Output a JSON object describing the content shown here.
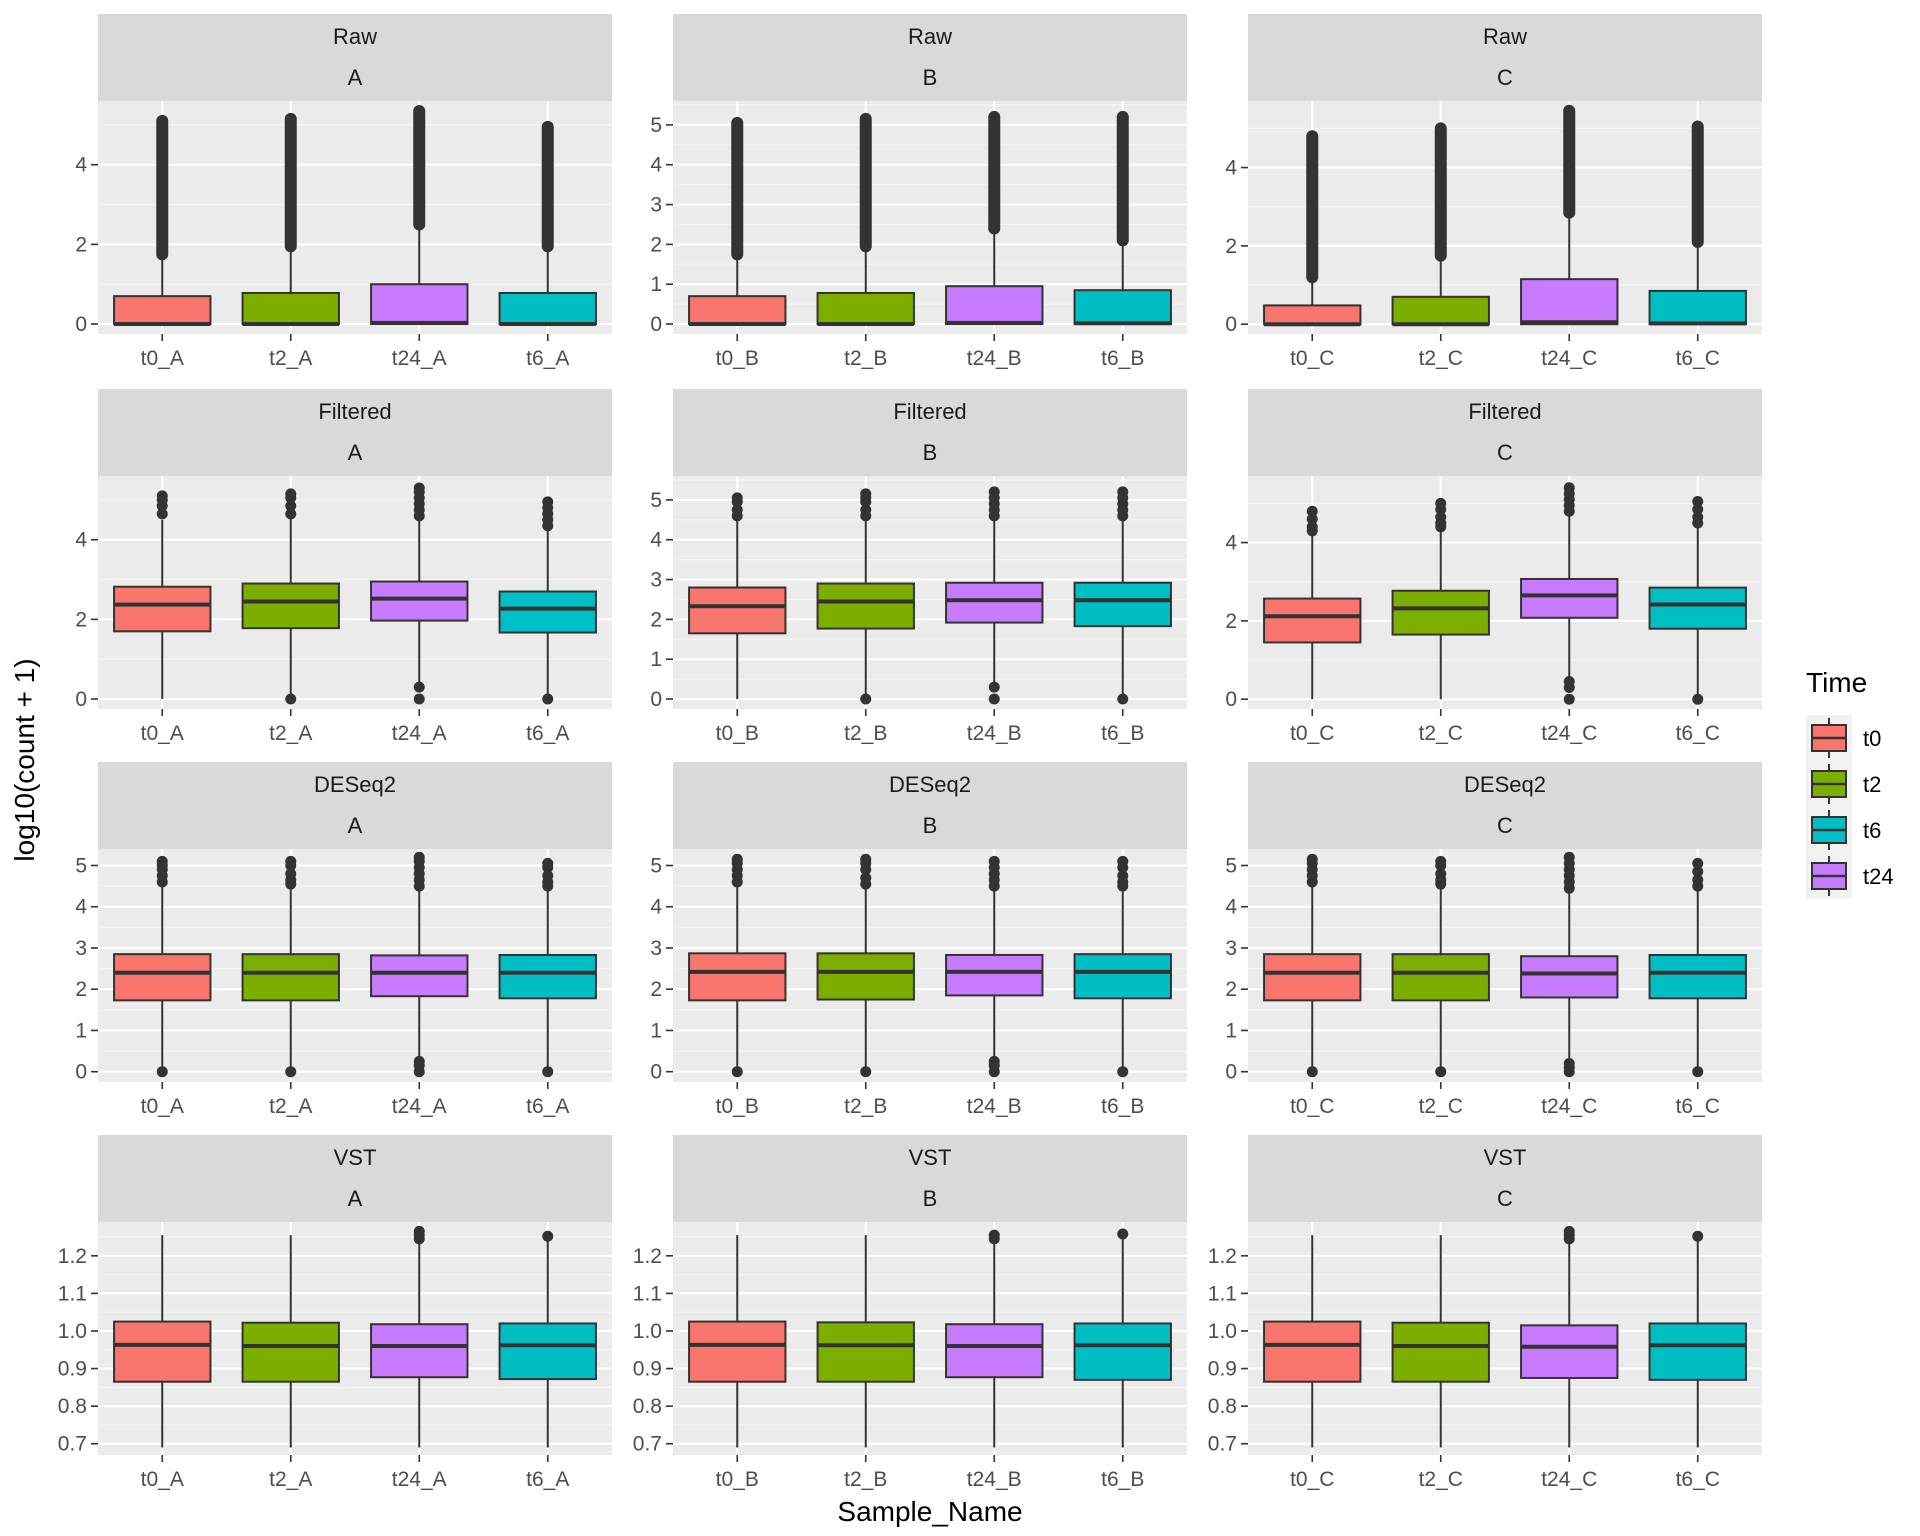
{
  "chart_data": {
    "type": "boxplot",
    "xlabel": "Sample_Name",
    "ylabel": "log10(count + 1)",
    "legend": {
      "title": "Time",
      "placement": "right",
      "entries": [
        {
          "label": "t0",
          "color": "#F8766D"
        },
        {
          "label": "t2",
          "color": "#7CAE00"
        },
        {
          "label": "t6",
          "color": "#00BFC4"
        },
        {
          "label": "t24",
          "color": "#C77CFF"
        }
      ]
    },
    "time_colors": {
      "t0": "#F8766D",
      "t2": "#7CAE00",
      "t6": "#00BFC4",
      "t24": "#C77CFF"
    },
    "rows": [
      {
        "label": "Raw",
        "ylim": [
          -0.25,
          5.6
        ],
        "ticks": [
          0,
          2,
          4
        ]
      },
      {
        "label": "Raw",
        "ylim": [
          -0.25,
          5.6
        ],
        "ticks": [
          0,
          1,
          2,
          3,
          4,
          5
        ]
      },
      {
        "label": "Raw",
        "ylim": [
          -0.25,
          5.7
        ],
        "ticks": [
          0,
          2,
          4
        ]
      },
      {
        "label": "Filtered",
        "ylim": [
          -0.25,
          5.6
        ],
        "ticks": [
          0,
          2,
          4
        ]
      },
      {
        "label": "Filtered",
        "ylim": [
          -0.25,
          5.6
        ],
        "ticks": [
          0,
          1,
          2,
          3,
          4,
          5
        ]
      },
      {
        "label": "Filtered",
        "ylim": [
          -0.25,
          5.7
        ],
        "ticks": [
          0,
          2,
          4
        ]
      },
      {
        "label": "DESeq2",
        "ylim": [
          -0.25,
          5.4
        ],
        "ticks": [
          0,
          1,
          2,
          3,
          4,
          5
        ]
      },
      {
        "label": "DESeq2",
        "ylim": [
          -0.25,
          5.4
        ],
        "ticks": [
          0,
          1,
          2,
          3,
          4,
          5
        ]
      },
      {
        "label": "DESeq2",
        "ylim": [
          -0.25,
          5.4
        ],
        "ticks": [
          0,
          1,
          2,
          3,
          4,
          5
        ]
      },
      {
        "label": "VST",
        "ylim": [
          0.67,
          1.29
        ],
        "ticks": [
          0.7,
          0.8,
          0.9,
          1.0,
          1.1,
          1.2
        ]
      },
      {
        "label": "VST",
        "ylim": [
          0.67,
          1.29
        ],
        "ticks": [
          0.7,
          0.8,
          0.9,
          1.0,
          1.1,
          1.2
        ]
      },
      {
        "label": "VST",
        "ylim": [
          0.67,
          1.29
        ],
        "ticks": [
          0.7,
          0.8,
          0.9,
          1.0,
          1.1,
          1.2
        ]
      }
    ],
    "panels": [
      {
        "row": "Raw",
        "replicate": "A",
        "boxes": [
          {
            "sample": "t0_A",
            "time": "t0",
            "min": 0,
            "q1": 0,
            "median": 0,
            "q3": 0.7,
            "max": 1.75,
            "outlier_range": [
              1.75,
              5.1
            ]
          },
          {
            "sample": "t2_A",
            "time": "t2",
            "min": 0,
            "q1": 0,
            "median": 0,
            "q3": 0.78,
            "max": 1.95,
            "outlier_range": [
              1.95,
              5.15
            ]
          },
          {
            "sample": "t24_A",
            "time": "t24",
            "min": 0,
            "q1": 0,
            "median": 0.03,
            "q3": 1.0,
            "max": 2.5,
            "outlier_range": [
              2.5,
              5.35
            ]
          },
          {
            "sample": "t6_A",
            "time": "t6",
            "min": 0,
            "q1": 0,
            "median": 0,
            "q3": 0.78,
            "max": 1.95,
            "outlier_range": [
              1.95,
              4.95
            ]
          }
        ]
      },
      {
        "row": "Raw",
        "replicate": "B",
        "boxes": [
          {
            "sample": "t0_B",
            "time": "t0",
            "min": 0,
            "q1": 0,
            "median": 0,
            "q3": 0.7,
            "max": 1.75,
            "outlier_range": [
              1.75,
              5.05
            ]
          },
          {
            "sample": "t2_B",
            "time": "t2",
            "min": 0,
            "q1": 0,
            "median": 0,
            "q3": 0.78,
            "max": 1.95,
            "outlier_range": [
              1.95,
              5.15
            ]
          },
          {
            "sample": "t24_B",
            "time": "t24",
            "min": 0,
            "q1": 0,
            "median": 0.03,
            "q3": 0.95,
            "max": 2.4,
            "outlier_range": [
              2.4,
              5.2
            ]
          },
          {
            "sample": "t6_B",
            "time": "t6",
            "min": 0,
            "q1": 0,
            "median": 0.02,
            "q3": 0.85,
            "max": 2.1,
            "outlier_range": [
              2.1,
              5.2
            ]
          }
        ]
      },
      {
        "row": "Raw",
        "replicate": "C",
        "boxes": [
          {
            "sample": "t0_C",
            "time": "t0",
            "min": 0,
            "q1": 0,
            "median": 0,
            "q3": 0.48,
            "max": 1.2,
            "outlier_range": [
              1.2,
              4.8
            ]
          },
          {
            "sample": "t2_C",
            "time": "t2",
            "min": 0,
            "q1": 0,
            "median": 0,
            "q3": 0.7,
            "max": 1.75,
            "outlier_range": [
              1.75,
              5.0
            ]
          },
          {
            "sample": "t24_C",
            "time": "t24",
            "min": 0,
            "q1": 0,
            "median": 0.05,
            "q3": 1.15,
            "max": 2.85,
            "outlier_range": [
              2.85,
              5.45
            ]
          },
          {
            "sample": "t6_C",
            "time": "t6",
            "min": 0,
            "q1": 0,
            "median": 0.02,
            "q3": 0.85,
            "max": 2.1,
            "outlier_range": [
              2.1,
              5.05
            ]
          }
        ]
      },
      {
        "row": "Filtered",
        "replicate": "A",
        "boxes": [
          {
            "sample": "t0_A",
            "time": "t0",
            "min": 0,
            "q1": 1.7,
            "median": 2.37,
            "q3": 2.82,
            "max": 4.5,
            "outliers": [
              4.65,
              4.85,
              5.0,
              5.1
            ]
          },
          {
            "sample": "t2_A",
            "time": "t2",
            "min": 0.05,
            "q1": 1.78,
            "median": 2.45,
            "q3": 2.9,
            "max": 4.55,
            "outliers": [
              0.0,
              4.65,
              4.85,
              5.05,
              5.15
            ]
          },
          {
            "sample": "t24_A",
            "time": "t24",
            "min": 0.3,
            "q1": 1.97,
            "median": 2.52,
            "q3": 2.95,
            "max": 4.6,
            "outliers": [
              0.0,
              0.3,
              4.6,
              4.75,
              4.9,
              5.05,
              5.2,
              5.3
            ]
          },
          {
            "sample": "t6_A",
            "time": "t6",
            "min": 0.05,
            "q1": 1.67,
            "median": 2.27,
            "q3": 2.7,
            "max": 4.3,
            "outliers": [
              0.0,
              4.35,
              4.5,
              4.65,
              4.8,
              4.95
            ]
          }
        ]
      },
      {
        "row": "Filtered",
        "replicate": "B",
        "boxes": [
          {
            "sample": "t0_B",
            "time": "t0",
            "min": 0,
            "q1": 1.65,
            "median": 2.33,
            "q3": 2.8,
            "max": 4.5,
            "outliers": [
              4.6,
              4.75,
              4.95,
              5.05
            ]
          },
          {
            "sample": "t2_B",
            "time": "t2",
            "min": 0.05,
            "q1": 1.77,
            "median": 2.45,
            "q3": 2.9,
            "max": 4.55,
            "outliers": [
              0.0,
              4.6,
              4.75,
              4.95,
              5.05,
              5.15
            ]
          },
          {
            "sample": "t24_B",
            "time": "t24",
            "min": 0.3,
            "q1": 1.92,
            "median": 2.48,
            "q3": 2.92,
            "max": 4.55,
            "outliers": [
              0.0,
              0.3,
              4.6,
              4.75,
              4.9,
              5.05,
              5.2
            ]
          },
          {
            "sample": "t6_B",
            "time": "t6",
            "min": 0.05,
            "q1": 1.83,
            "median": 2.48,
            "q3": 2.92,
            "max": 4.55,
            "outliers": [
              0.0,
              4.6,
              4.75,
              4.9,
              5.05,
              5.2
            ]
          }
        ]
      },
      {
        "row": "Filtered",
        "replicate": "C",
        "boxes": [
          {
            "sample": "t0_C",
            "time": "t0",
            "min": 0,
            "q1": 1.45,
            "median": 2.12,
            "q3": 2.57,
            "max": 4.2,
            "outliers": [
              4.3,
              4.4,
              4.6,
              4.8
            ]
          },
          {
            "sample": "t2_C",
            "time": "t2",
            "min": 0,
            "q1": 1.65,
            "median": 2.32,
            "q3": 2.77,
            "max": 4.35,
            "outliers": [
              4.4,
              4.5,
              4.65,
              4.85,
              5.0
            ]
          },
          {
            "sample": "t24_C",
            "time": "t24",
            "min": 0.5,
            "q1": 2.08,
            "median": 2.65,
            "q3": 3.07,
            "max": 4.75,
            "outliers": [
              0.0,
              0.3,
              0.45,
              4.8,
              4.95,
              5.1,
              5.25,
              5.4
            ]
          },
          {
            "sample": "t6_C",
            "time": "t6",
            "min": 0.05,
            "q1": 1.8,
            "median": 2.42,
            "q3": 2.85,
            "max": 4.45,
            "outliers": [
              0.0,
              4.5,
              4.65,
              4.85,
              5.05
            ]
          }
        ]
      },
      {
        "row": "DESeq2",
        "replicate": "A",
        "boxes": [
          {
            "sample": "t0_A",
            "time": "t0",
            "min": 0.05,
            "q1": 1.73,
            "median": 2.4,
            "q3": 2.85,
            "max": 4.5,
            "outliers": [
              0.0,
              4.6,
              4.75,
              4.9,
              5.0,
              5.1
            ]
          },
          {
            "sample": "t2_A",
            "time": "t2",
            "min": 0.05,
            "q1": 1.73,
            "median": 2.4,
            "q3": 2.85,
            "max": 4.5,
            "outliers": [
              0.0,
              4.55,
              4.65,
              4.8,
              5.0,
              5.1
            ]
          },
          {
            "sample": "t24_A",
            "time": "t24",
            "min": 0.3,
            "q1": 1.83,
            "median": 2.4,
            "q3": 2.82,
            "max": 4.45,
            "outliers": [
              0.0,
              0.15,
              0.25,
              4.5,
              4.65,
              4.8,
              4.95,
              5.1,
              5.2
            ]
          },
          {
            "sample": "t6_A",
            "time": "t6",
            "min": 0.05,
            "q1": 1.78,
            "median": 2.4,
            "q3": 2.83,
            "max": 4.45,
            "outliers": [
              0.0,
              4.5,
              4.6,
              4.75,
              4.95,
              5.05
            ]
          }
        ]
      },
      {
        "row": "DESeq2",
        "replicate": "B",
        "boxes": [
          {
            "sample": "t0_B",
            "time": "t0",
            "min": 0.05,
            "q1": 1.73,
            "median": 2.42,
            "q3": 2.87,
            "max": 4.5,
            "outliers": [
              0.0,
              4.6,
              4.75,
              4.9,
              5.05,
              5.15
            ]
          },
          {
            "sample": "t2_B",
            "time": "t2",
            "min": 0.05,
            "q1": 1.75,
            "median": 2.42,
            "q3": 2.87,
            "max": 4.5,
            "outliers": [
              0.0,
              4.55,
              4.7,
              4.9,
              5.05,
              5.15
            ]
          },
          {
            "sample": "t24_B",
            "time": "t24",
            "min": 0.3,
            "q1": 1.85,
            "median": 2.42,
            "q3": 2.83,
            "max": 4.45,
            "outliers": [
              0.0,
              0.15,
              0.25,
              4.5,
              4.65,
              4.8,
              4.95,
              5.1
            ]
          },
          {
            "sample": "t6_B",
            "time": "t6",
            "min": 0.05,
            "q1": 1.78,
            "median": 2.42,
            "q3": 2.85,
            "max": 4.45,
            "outliers": [
              0.0,
              4.5,
              4.6,
              4.75,
              4.95,
              5.1
            ]
          }
        ]
      },
      {
        "row": "DESeq2",
        "replicate": "C",
        "boxes": [
          {
            "sample": "t0_C",
            "time": "t0",
            "min": 0.05,
            "q1": 1.73,
            "median": 2.4,
            "q3": 2.85,
            "max": 4.5,
            "outliers": [
              0.0,
              4.6,
              4.75,
              4.9,
              5.05,
              5.15
            ]
          },
          {
            "sample": "t2_C",
            "time": "t2",
            "min": 0.05,
            "q1": 1.73,
            "median": 2.4,
            "q3": 2.85,
            "max": 4.5,
            "outliers": [
              0.0,
              4.55,
              4.65,
              4.8,
              5.0,
              5.1
            ]
          },
          {
            "sample": "t24_C",
            "time": "t24",
            "min": 0.3,
            "q1": 1.8,
            "median": 2.38,
            "q3": 2.8,
            "max": 4.4,
            "outliers": [
              0.0,
              0.1,
              0.2,
              4.45,
              4.6,
              4.75,
              4.9,
              5.05,
              5.2
            ]
          },
          {
            "sample": "t6_C",
            "time": "t6",
            "min": 0.05,
            "q1": 1.78,
            "median": 2.4,
            "q3": 2.83,
            "max": 4.45,
            "outliers": [
              0.0,
              4.5,
              4.65,
              4.85,
              5.05
            ]
          }
        ]
      },
      {
        "row": "VST",
        "replicate": "A",
        "boxes": [
          {
            "sample": "t0_A",
            "time": "t0",
            "min": 0.69,
            "q1": 0.865,
            "median": 0.963,
            "q3": 1.025,
            "max": 1.255,
            "outliers": []
          },
          {
            "sample": "t2_A",
            "time": "t2",
            "min": 0.69,
            "q1": 0.865,
            "median": 0.96,
            "q3": 1.022,
            "max": 1.255,
            "outliers": []
          },
          {
            "sample": "t24_A",
            "time": "t24",
            "min": 0.69,
            "q1": 0.877,
            "median": 0.96,
            "q3": 1.018,
            "max": 1.24,
            "outliers": [
              1.245,
              1.255,
              1.265
            ]
          },
          {
            "sample": "t6_A",
            "time": "t6",
            "min": 0.69,
            "q1": 0.872,
            "median": 0.962,
            "q3": 1.02,
            "max": 1.24,
            "outliers": [
              1.252
            ]
          }
        ]
      },
      {
        "row": "VST",
        "replicate": "B",
        "boxes": [
          {
            "sample": "t0_B",
            "time": "t0",
            "min": 0.69,
            "q1": 0.865,
            "median": 0.963,
            "q3": 1.025,
            "max": 1.255,
            "outliers": []
          },
          {
            "sample": "t2_B",
            "time": "t2",
            "min": 0.69,
            "q1": 0.865,
            "median": 0.962,
            "q3": 1.023,
            "max": 1.255,
            "outliers": []
          },
          {
            "sample": "t24_B",
            "time": "t24",
            "min": 0.69,
            "q1": 0.877,
            "median": 0.96,
            "q3": 1.018,
            "max": 1.24,
            "outliers": [
              1.245,
              1.255
            ]
          },
          {
            "sample": "t6_B",
            "time": "t6",
            "min": 0.69,
            "q1": 0.87,
            "median": 0.962,
            "q3": 1.02,
            "max": 1.245,
            "outliers": [
              1.258
            ]
          }
        ]
      },
      {
        "row": "VST",
        "replicate": "C",
        "boxes": [
          {
            "sample": "t0_C",
            "time": "t0",
            "min": 0.69,
            "q1": 0.865,
            "median": 0.963,
            "q3": 1.025,
            "max": 1.255,
            "outliers": []
          },
          {
            "sample": "t2_C",
            "time": "t2",
            "min": 0.69,
            "q1": 0.865,
            "median": 0.96,
            "q3": 1.022,
            "max": 1.255,
            "outliers": []
          },
          {
            "sample": "t24_C",
            "time": "t24",
            "min": 0.69,
            "q1": 0.875,
            "median": 0.958,
            "q3": 1.015,
            "max": 1.24,
            "outliers": [
              1.245,
              1.255,
              1.265
            ]
          },
          {
            "sample": "t6_C",
            "time": "t6",
            "min": 0.69,
            "q1": 0.87,
            "median": 0.962,
            "q3": 1.02,
            "max": 1.24,
            "outliers": [
              1.252
            ]
          }
        ]
      }
    ]
  }
}
